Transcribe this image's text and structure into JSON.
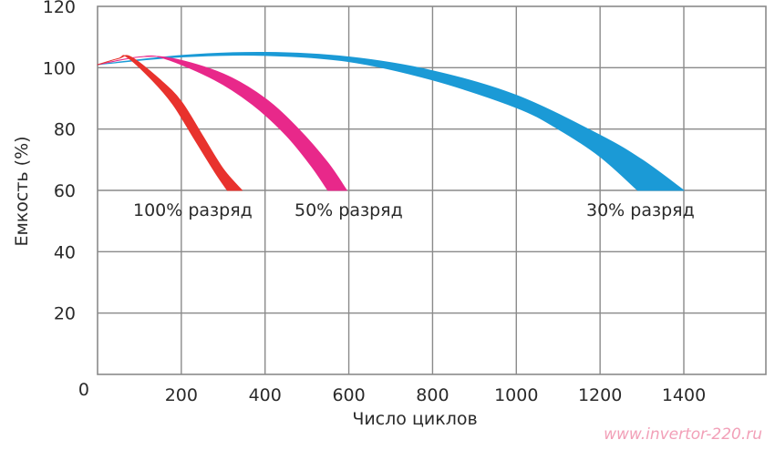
{
  "chart_data": {
    "type": "area",
    "title": "",
    "xlabel": "Число циклов",
    "ylabel": "Емкость (%)",
    "xlim": [
      0,
      1600
    ],
    "ylim": [
      0,
      120
    ],
    "x_ticks": [
      0,
      200,
      400,
      600,
      800,
      1000,
      1200,
      1400
    ],
    "x_tick_labels": [
      "0",
      "200",
      "400",
      "600",
      "800",
      "1000",
      "1200",
      "1400"
    ],
    "y_ticks": [
      0,
      20,
      40,
      60,
      80,
      100,
      120
    ],
    "y_tick_labels": [
      "0",
      "20",
      "40",
      "60",
      "80",
      "100",
      "120"
    ],
    "grid": true,
    "legend_position": "inline labels along y=60",
    "series": [
      {
        "name": "100% разряд",
        "label": "100% разряд",
        "color": "#e8322d",
        "upper": [
          [
            0,
            101
          ],
          [
            50,
            103
          ],
          [
            80,
            103.5
          ],
          [
            150,
            96
          ],
          [
            200,
            89
          ],
          [
            250,
            78
          ],
          [
            300,
            67
          ],
          [
            345,
            60
          ]
        ],
        "lower": [
          [
            0,
            101
          ],
          [
            50,
            103
          ],
          [
            70,
            103.5
          ],
          [
            130,
            96
          ],
          [
            180,
            88
          ],
          [
            230,
            77
          ],
          [
            280,
            66
          ],
          [
            310,
            60
          ]
        ]
      },
      {
        "name": "50% разряд",
        "label": "50% разряд",
        "color": "#e8288a",
        "upper": [
          [
            0,
            101
          ],
          [
            100,
            103.5
          ],
          [
            180,
            103
          ],
          [
            300,
            98
          ],
          [
            400,
            90
          ],
          [
            480,
            80
          ],
          [
            550,
            69
          ],
          [
            595,
            60
          ]
        ],
        "lower": [
          [
            0,
            101
          ],
          [
            100,
            103.5
          ],
          [
            160,
            103
          ],
          [
            280,
            96
          ],
          [
            370,
            88
          ],
          [
            450,
            78
          ],
          [
            510,
            68
          ],
          [
            550,
            60
          ]
        ]
      },
      {
        "name": "30% разряд",
        "label": "30% разряд",
        "color": "#1b9ad6",
        "upper": [
          [
            0,
            101
          ],
          [
            200,
            104
          ],
          [
            400,
            105
          ],
          [
            600,
            103.5
          ],
          [
            800,
            99
          ],
          [
            1000,
            91
          ],
          [
            1200,
            78
          ],
          [
            1300,
            70
          ],
          [
            1400,
            60
          ]
        ],
        "lower": [
          [
            0,
            101
          ],
          [
            200,
            103.5
          ],
          [
            400,
            104
          ],
          [
            600,
            102
          ],
          [
            800,
            96
          ],
          [
            1000,
            87
          ],
          [
            1100,
            80
          ],
          [
            1200,
            71
          ],
          [
            1290,
            60
          ]
        ]
      }
    ]
  },
  "labels": {
    "series_100": "100% разряд",
    "series_50": "50% разряд",
    "series_30": "30% разряд",
    "xlabel": "Число циклов",
    "ylabel": "Емкость (%)",
    "watermark": "www.invertor-220.ru",
    "y_ticks": [
      "0",
      "20",
      "40",
      "60",
      "80",
      "100",
      "120"
    ],
    "x_ticks": [
      "0",
      "200",
      "400",
      "600",
      "800",
      "1000",
      "1200",
      "1400"
    ]
  },
  "colors": {
    "grid": "#8a8a8a",
    "text": "#2a2a2a",
    "series_100": "#e8322d",
    "series_50": "#e8288a",
    "series_30": "#1b9ad6",
    "watermark": "#f2a0b8"
  }
}
